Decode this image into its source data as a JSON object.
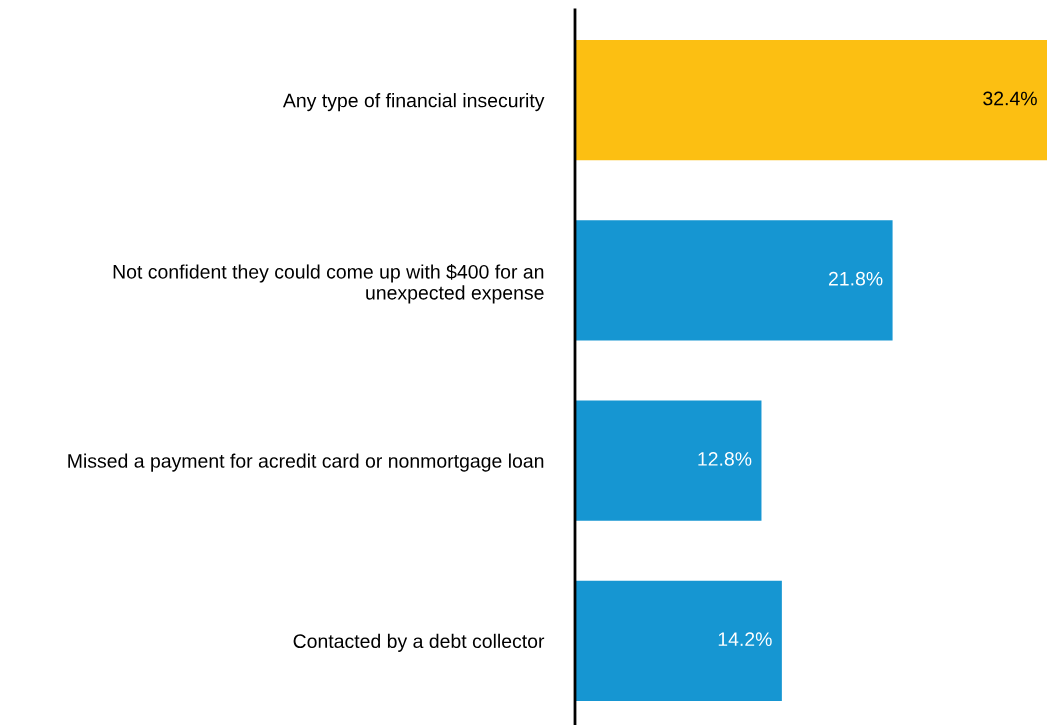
{
  "chart_data": {
    "type": "bar",
    "orientation": "horizontal",
    "categories": [
      "Any type of financial insecurity",
      "Not confident they could come up with $400 for an\nunexpected expense",
      "Missed a payment for acredit card or nonmortgage loan",
      "Contacted by a debt collector"
    ],
    "values": [
      32.4,
      21.8,
      12.8,
      14.2
    ],
    "value_labels": [
      "32.4%",
      "21.8%",
      "12.8%",
      "14.2%"
    ],
    "colors": [
      "#fcbf12",
      "#1696d2",
      "#1696d2",
      "#1696d2"
    ],
    "grid": false,
    "legend": false,
    "tick_labels": "y"
  }
}
